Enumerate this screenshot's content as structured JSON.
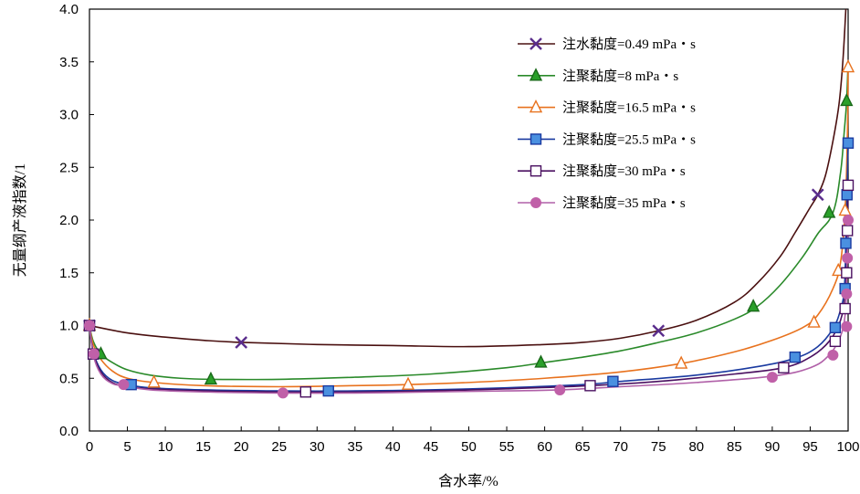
{
  "chart_data": {
    "type": "line",
    "title": "",
    "xlabel": "含水率/%",
    "ylabel": "无量纲产液指数/1",
    "xlim": [
      0,
      100
    ],
    "ylim": [
      0,
      4.0
    ],
    "xticks": [
      0,
      5,
      10,
      15,
      20,
      25,
      30,
      35,
      40,
      45,
      50,
      55,
      60,
      65,
      70,
      75,
      80,
      85,
      90,
      95,
      100
    ],
    "xtick_labels": [
      "0",
      "5",
      "10",
      "15",
      "20",
      "25",
      "30",
      "35",
      "40",
      "45",
      "50",
      "55",
      "60",
      "65",
      "70",
      "75",
      "80",
      "85",
      "90",
      "95",
      "100"
    ],
    "yticks": [
      0,
      0.5,
      1.0,
      1.5,
      2.0,
      2.5,
      3.0,
      3.5,
      4.0
    ],
    "ytick_labels": [
      "0.0",
      "0.5",
      "1.0",
      "1.5",
      "2.0",
      "2.5",
      "3.0",
      "3.5",
      "4.0"
    ],
    "grid": false,
    "legend_position": "top-right",
    "series": [
      {
        "name": "注水黏度=0.49 mPa・s",
        "color": "#4a1010",
        "marker": "x",
        "marker_color": "#5a2d8c",
        "curve": [
          [
            0,
            1.0
          ],
          [
            5,
            0.93
          ],
          [
            10,
            0.89
          ],
          [
            15,
            0.86
          ],
          [
            20,
            0.84
          ],
          [
            30,
            0.82
          ],
          [
            40,
            0.81
          ],
          [
            50,
            0.8
          ],
          [
            60,
            0.82
          ],
          [
            65,
            0.84
          ],
          [
            70,
            0.88
          ],
          [
            75,
            0.95
          ],
          [
            80,
            1.05
          ],
          [
            85,
            1.22
          ],
          [
            88,
            1.4
          ],
          [
            91,
            1.65
          ],
          [
            93,
            1.88
          ],
          [
            95,
            2.12
          ],
          [
            96,
            2.24
          ],
          [
            97,
            2.42
          ],
          [
            98,
            2.75
          ],
          [
            98.8,
            3.1
          ],
          [
            99.3,
            3.5
          ],
          [
            99.7,
            4.0
          ]
        ],
        "points": [
          [
            0,
            1.0
          ],
          [
            20,
            0.84
          ],
          [
            75,
            0.95
          ],
          [
            96,
            2.24
          ]
        ]
      },
      {
        "name": "注聚黏度=8 mPa・s",
        "color": "#2a8a2a",
        "marker": "triangle",
        "marker_color": "#2aa02a",
        "curve": [
          [
            0,
            1.0
          ],
          [
            0.5,
            0.85
          ],
          [
            1.5,
            0.73
          ],
          [
            3,
            0.65
          ],
          [
            5,
            0.58
          ],
          [
            8,
            0.53
          ],
          [
            12,
            0.5
          ],
          [
            16,
            0.49
          ],
          [
            25,
            0.49
          ],
          [
            35,
            0.51
          ],
          [
            45,
            0.54
          ],
          [
            55,
            0.6
          ],
          [
            60,
            0.65
          ],
          [
            65,
            0.7
          ],
          [
            70,
            0.76
          ],
          [
            75,
            0.84
          ],
          [
            80,
            0.93
          ],
          [
            85,
            1.06
          ],
          [
            88,
            1.18
          ],
          [
            91,
            1.38
          ],
          [
            94,
            1.65
          ],
          [
            96,
            1.87
          ],
          [
            98,
            2.07
          ],
          [
            99,
            2.45
          ],
          [
            99.5,
            2.85
          ],
          [
            99.8,
            3.13
          ],
          [
            100,
            3.5
          ]
        ],
        "points": [
          [
            0,
            1.0
          ],
          [
            1.5,
            0.73
          ],
          [
            16,
            0.49
          ],
          [
            59.5,
            0.65
          ],
          [
            87.5,
            1.18
          ],
          [
            97.5,
            2.07
          ],
          [
            99.8,
            3.13
          ]
        ]
      },
      {
        "name": "注聚黏度=16.5 mPa・s",
        "color": "#e8721e",
        "marker": "triangle-open",
        "marker_color": "#e8721e",
        "curve": [
          [
            0,
            1.0
          ],
          [
            0.5,
            0.82
          ],
          [
            1.5,
            0.68
          ],
          [
            3,
            0.57
          ],
          [
            5,
            0.5
          ],
          [
            8.5,
            0.46
          ],
          [
            15,
            0.43
          ],
          [
            25,
            0.42
          ],
          [
            35,
            0.43
          ],
          [
            42,
            0.44
          ],
          [
            50,
            0.46
          ],
          [
            60,
            0.5
          ],
          [
            70,
            0.56
          ],
          [
            78,
            0.64
          ],
          [
            85,
            0.75
          ],
          [
            90,
            0.86
          ],
          [
            94,
            0.98
          ],
          [
            96,
            1.1
          ],
          [
            98,
            1.35
          ],
          [
            99,
            1.6
          ],
          [
            99.6,
            2.09
          ],
          [
            99.9,
            2.8
          ],
          [
            100,
            3.45
          ]
        ],
        "points": [
          [
            0,
            1.0
          ],
          [
            8.5,
            0.46
          ],
          [
            42,
            0.44
          ],
          [
            78,
            0.64
          ],
          [
            95.5,
            1.03
          ],
          [
            98.7,
            1.52
          ],
          [
            99.6,
            2.09
          ],
          [
            100,
            3.45
          ]
        ]
      },
      {
        "name": "注聚黏度=25.5 mPa・s",
        "color": "#1a3aa0",
        "marker": "square",
        "marker_color": "#4a90e0",
        "curve": [
          [
            0,
            1.0
          ],
          [
            0.5,
            0.75
          ],
          [
            1.5,
            0.58
          ],
          [
            3,
            0.48
          ],
          [
            5,
            0.44
          ],
          [
            8,
            0.41
          ],
          [
            15,
            0.39
          ],
          [
            25,
            0.38
          ],
          [
            35,
            0.38
          ],
          [
            45,
            0.39
          ],
          [
            55,
            0.41
          ],
          [
            65,
            0.44
          ],
          [
            70,
            0.47
          ],
          [
            80,
            0.53
          ],
          [
            88,
            0.61
          ],
          [
            93,
            0.69
          ],
          [
            96,
            0.8
          ],
          [
            98,
            0.97
          ],
          [
            99,
            1.15
          ],
          [
            99.5,
            1.35
          ],
          [
            99.7,
            1.78
          ],
          [
            99.85,
            2.24
          ],
          [
            100,
            2.73
          ]
        ],
        "points": [
          [
            0,
            1.0
          ],
          [
            0.5,
            0.73
          ],
          [
            5.5,
            0.44
          ],
          [
            31.5,
            0.38
          ],
          [
            69,
            0.47
          ],
          [
            93,
            0.7
          ],
          [
            98.3,
            0.98
          ],
          [
            99.6,
            1.35
          ],
          [
            99.7,
            1.78
          ],
          [
            99.85,
            2.24
          ],
          [
            100,
            2.73
          ]
        ]
      },
      {
        "name": "注聚黏度=30 mPa・s",
        "color": "#4a1060",
        "marker": "square-open",
        "marker_color": "#4a1060",
        "curve": [
          [
            0,
            1.0
          ],
          [
            0.5,
            0.74
          ],
          [
            1.5,
            0.56
          ],
          [
            3,
            0.46
          ],
          [
            5,
            0.42
          ],
          [
            8,
            0.4
          ],
          [
            15,
            0.38
          ],
          [
            25,
            0.37
          ],
          [
            35,
            0.37
          ],
          [
            45,
            0.38
          ],
          [
            55,
            0.4
          ],
          [
            66,
            0.43
          ],
          [
            75,
            0.47
          ],
          [
            85,
            0.54
          ],
          [
            91.5,
            0.6
          ],
          [
            95,
            0.7
          ],
          [
            97.5,
            0.85
          ],
          [
            99,
            1.05
          ],
          [
            99.6,
            1.3
          ],
          [
            99.8,
            1.6
          ],
          [
            99.9,
            1.9
          ],
          [
            100,
            2.33
          ]
        ],
        "points": [
          [
            0,
            1.0
          ],
          [
            0.5,
            0.73
          ],
          [
            28.5,
            0.37
          ],
          [
            66,
            0.43
          ],
          [
            91.5,
            0.6
          ],
          [
            98.3,
            0.85
          ],
          [
            99.6,
            1.16
          ],
          [
            99.8,
            1.5
          ],
          [
            99.9,
            1.9
          ],
          [
            100,
            2.33
          ]
        ]
      },
      {
        "name": "注聚黏度=35 mPa・s",
        "color": "#b060a8",
        "marker": "circle",
        "marker_color": "#c060a8",
        "curve": [
          [
            0,
            1.0
          ],
          [
            0.5,
            0.72
          ],
          [
            1.5,
            0.54
          ],
          [
            3,
            0.45
          ],
          [
            4.5,
            0.43
          ],
          [
            8,
            0.39
          ],
          [
            15,
            0.37
          ],
          [
            25,
            0.36
          ],
          [
            35,
            0.36
          ],
          [
            45,
            0.37
          ],
          [
            55,
            0.38
          ],
          [
            62,
            0.39
          ],
          [
            70,
            0.42
          ],
          [
            80,
            0.46
          ],
          [
            90,
            0.52
          ],
          [
            95,
            0.6
          ],
          [
            97.5,
            0.72
          ],
          [
            99,
            0.9
          ],
          [
            99.6,
            1.1
          ],
          [
            99.8,
            1.4
          ],
          [
            99.9,
            1.7
          ],
          [
            100,
            2.0
          ]
        ],
        "points": [
          [
            0,
            1.0
          ],
          [
            0.6,
            0.73
          ],
          [
            4.5,
            0.44
          ],
          [
            25.5,
            0.36
          ],
          [
            62,
            0.39
          ],
          [
            90,
            0.51
          ],
          [
            98,
            0.72
          ],
          [
            99.8,
            0.99
          ],
          [
            99.8,
            1.3
          ],
          [
            99.9,
            1.64
          ],
          [
            100,
            2.0
          ]
        ]
      }
    ]
  }
}
